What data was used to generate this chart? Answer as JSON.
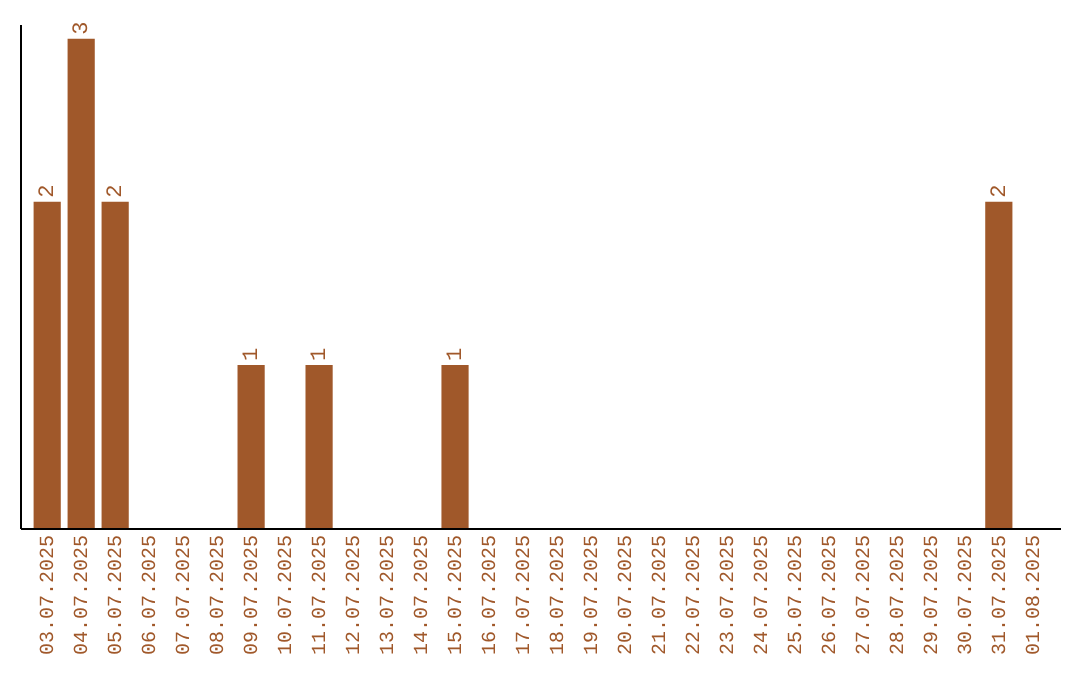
{
  "chart_data": {
    "type": "bar",
    "categories": [
      "03.07.2025",
      "04.07.2025",
      "05.07.2025",
      "06.07.2025",
      "07.07.2025",
      "08.07.2025",
      "09.07.2025",
      "10.07.2025",
      "11.07.2025",
      "12.07.2025",
      "13.07.2025",
      "14.07.2025",
      "15.07.2025",
      "16.07.2025",
      "17.07.2025",
      "18.07.2025",
      "19.07.2025",
      "20.07.2025",
      "21.07.2025",
      "22.07.2025",
      "23.07.2025",
      "24.07.2025",
      "25.07.2025",
      "26.07.2025",
      "27.07.2025",
      "28.07.2025",
      "29.07.2025",
      "30.07.2025",
      "31.07.2025",
      "01.08.2025"
    ],
    "values": [
      2,
      3,
      2,
      0,
      0,
      0,
      1,
      0,
      1,
      0,
      0,
      0,
      1,
      0,
      0,
      0,
      0,
      0,
      0,
      0,
      0,
      0,
      0,
      0,
      0,
      0,
      0,
      0,
      2,
      0
    ],
    "value_labels": [
      "2",
      "3",
      "2",
      null,
      null,
      null,
      "1",
      null,
      "1",
      null,
      null,
      null,
      "1",
      null,
      null,
      null,
      null,
      null,
      null,
      null,
      null,
      null,
      null,
      null,
      null,
      null,
      null,
      null,
      "2",
      null
    ],
    "color": "#a0582a",
    "grid": false,
    "tick_labels": "x"
  }
}
